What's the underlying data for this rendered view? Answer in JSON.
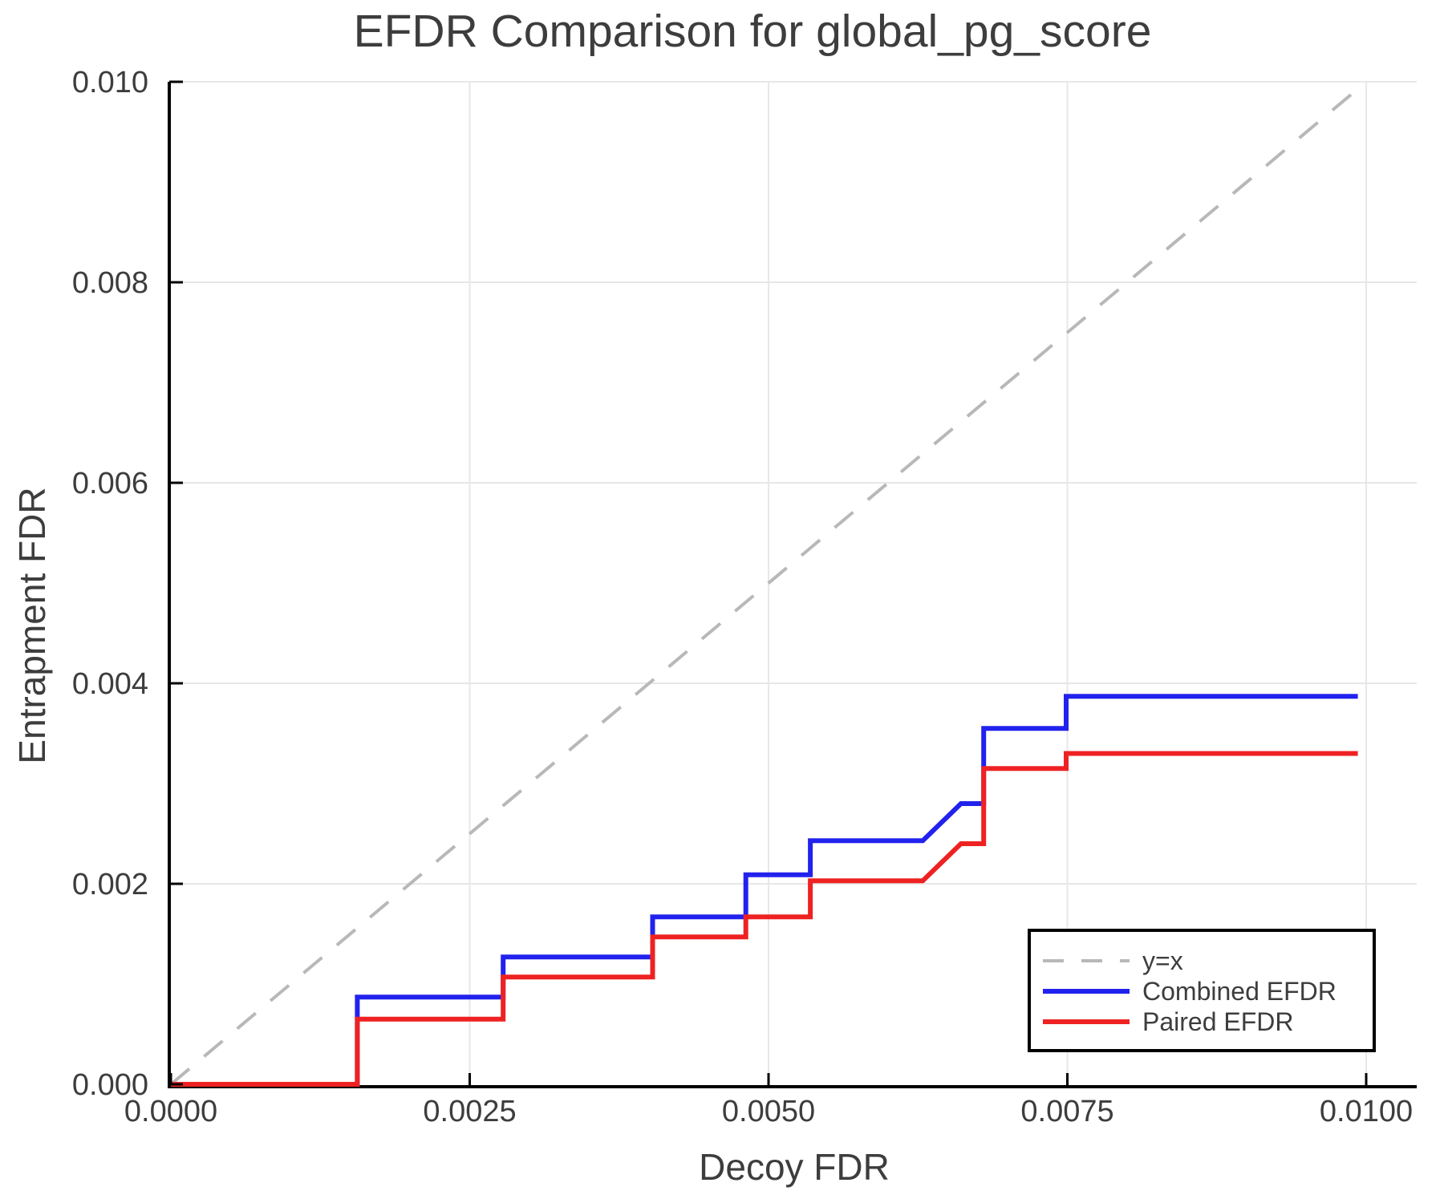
{
  "chart_data": {
    "type": "line",
    "title": "EFDR Comparison for global_pg_score",
    "xlabel": "Decoy FDR",
    "ylabel": "Entrapment FDR",
    "xlim": [
      0.0,
      0.0104
    ],
    "ylim": [
      0.0,
      0.01
    ],
    "grid": true,
    "x_ticks": [
      {
        "value": 0.0,
        "label": "0.0000"
      },
      {
        "value": 0.0025,
        "label": "0.0025"
      },
      {
        "value": 0.005,
        "label": "0.0050"
      },
      {
        "value": 0.0075,
        "label": "0.0075"
      },
      {
        "value": 0.01,
        "label": "0.0100"
      }
    ],
    "y_ticks": [
      {
        "value": 0.0,
        "label": "0.000"
      },
      {
        "value": 0.002,
        "label": "0.002"
      },
      {
        "value": 0.004,
        "label": "0.004"
      },
      {
        "value": 0.006,
        "label": "0.006"
      },
      {
        "value": 0.008,
        "label": "0.008"
      },
      {
        "value": 0.01,
        "label": "0.010"
      }
    ],
    "series": [
      {
        "name": "y=x",
        "color": "#b8b8b8",
        "style": "dashed",
        "width": 4,
        "points": [
          [
            0.0,
            0.0
          ],
          [
            0.00995,
            0.00995
          ]
        ]
      },
      {
        "name": "Combined EFDR",
        "color": "#2222ee",
        "style": "solid",
        "width": 6,
        "points": [
          [
            0.0,
            0.0
          ],
          [
            0.00156,
            0.0
          ],
          [
            0.00156,
            0.00087
          ],
          [
            0.00278,
            0.00087
          ],
          [
            0.00278,
            0.00127
          ],
          [
            0.00403,
            0.00127
          ],
          [
            0.00403,
            0.00167
          ],
          [
            0.00481,
            0.00167
          ],
          [
            0.00481,
            0.00209
          ],
          [
            0.00535,
            0.00209
          ],
          [
            0.00535,
            0.00243
          ],
          [
            0.00629,
            0.00243
          ],
          [
            0.00661,
            0.0028
          ],
          [
            0.0068,
            0.0028
          ],
          [
            0.0068,
            0.00355
          ],
          [
            0.00749,
            0.00355
          ],
          [
            0.00749,
            0.00387
          ],
          [
            0.00993,
            0.00387
          ]
        ]
      },
      {
        "name": "Paired EFDR",
        "color": "#ee2222",
        "style": "solid",
        "width": 6,
        "points": [
          [
            0.0,
            0.0
          ],
          [
            0.00156,
            0.0
          ],
          [
            0.00156,
            0.00065
          ],
          [
            0.00278,
            0.00065
          ],
          [
            0.00278,
            0.00107
          ],
          [
            0.00403,
            0.00107
          ],
          [
            0.00403,
            0.00147
          ],
          [
            0.00481,
            0.00147
          ],
          [
            0.00481,
            0.00167
          ],
          [
            0.00535,
            0.00167
          ],
          [
            0.00535,
            0.00203
          ],
          [
            0.00629,
            0.00203
          ],
          [
            0.00661,
            0.0024
          ],
          [
            0.0068,
            0.0024
          ],
          [
            0.0068,
            0.00315
          ],
          [
            0.00749,
            0.00315
          ],
          [
            0.00749,
            0.0033
          ],
          [
            0.00993,
            0.0033
          ]
        ]
      }
    ],
    "legend": {
      "position": "lower right",
      "labels": [
        "y=x",
        "Combined EFDR",
        "Paired EFDR"
      ],
      "border_color": "#000000",
      "background": "#ffffff"
    },
    "colors": {
      "grid": "#e7e7e7",
      "spine": "#000000",
      "text": "#3d3d3d",
      "reference_line": "#b8b8b8",
      "combined_efdr": "#2222ee",
      "paired_efdr": "#ee2222"
    }
  }
}
